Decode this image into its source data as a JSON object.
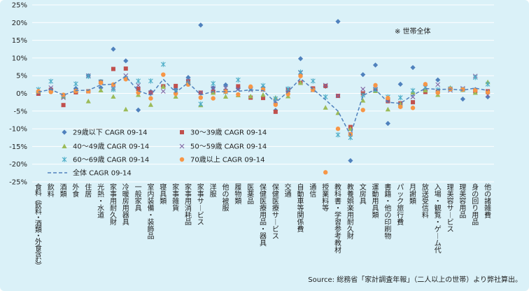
{
  "chart_data": {
    "type": "scatter",
    "ylim": [
      -25,
      25
    ],
    "y_ticks": [
      "25%",
      "20%",
      "15%",
      "10%",
      "5%",
      "0%",
      "-5%",
      "-10%",
      "-15%",
      "-20%",
      "-25%"
    ],
    "y_tick_values": [
      25,
      20,
      15,
      10,
      5,
      0,
      -5,
      -10,
      -15,
      -20,
      -25
    ],
    "grid": true,
    "legend_position": "bottom-left",
    "annotation": "※ 世帯全体",
    "source": "Source: 総務省「家計調査年報」（二人以上の世帯）より弊社算出。",
    "categories": [
      "食料（飲料・酒類・外食含む）",
      "飲料",
      "酒類",
      "外食",
      "住居",
      "光熱・水道",
      "家事用耐久財",
      "冷暖房用器具",
      "一般家具",
      "室内装備・装飾品",
      "寝具類",
      "家事雑貨",
      "家事用消耗品",
      "家事サービス",
      "洋服",
      "他の被服",
      "履物類",
      "医薬品",
      "保健医療用品・器具",
      "保健医療サービス",
      "交通",
      "自動車等関係費",
      "通信",
      "授業料等",
      "教科書・学習参考教材",
      "教養娯楽用耐久財",
      "文房具",
      "運動用具類",
      "書籍・他の印刷物",
      "パック旅行費",
      "月謝類",
      "放送受信料",
      "入場・観覧・ゲーム代",
      "理美容サービス",
      "理美容用品",
      "身の回り用品",
      "他の諸雑費"
    ],
    "series": [
      {
        "name": "29歳以下 CAGR 09-14",
        "marker": "diamond",
        "color": "#4f81bd",
        "values": [
          0.3,
          1.2,
          -0.6,
          1.4,
          5.0,
          1.6,
          12.5,
          9.2,
          -4.7,
          0.5,
          2.0,
          1.2,
          4.5,
          19.3,
          1.6,
          2.4,
          1.4,
          1.8,
          1.7,
          -4.8,
          0.7,
          9.8,
          1.2,
          2.0,
          20.3,
          -19.0,
          5.3,
          8.0,
          -8.5,
          2.6,
          7.3,
          0.8,
          3.8,
          1.3,
          -1.6,
          1.1,
          -1.0
        ]
      },
      {
        "name": "30～39歳 CAGR 09-14",
        "marker": "square",
        "color": "#c0504d",
        "values": [
          -0.1,
          1.0,
          -3.3,
          0.3,
          0.6,
          3.3,
          6.9,
          7.0,
          1.3,
          0.2,
          2.0,
          2.1,
          3.4,
          0.2,
          0.5,
          0.7,
          2.0,
          -1.2,
          -1.3,
          -5.2,
          0.9,
          3.0,
          1.4,
          2.1,
          -0.7,
          -9.5,
          0.0,
          1.0,
          -2.2,
          -2.8,
          -2.5,
          0.4,
          0.5,
          1.3,
          1.0,
          0.6,
          0.6
        ]
      },
      {
        "name": "40～49歳 CAGR 09-14",
        "marker": "triangle",
        "color": "#9bbb59",
        "values": [
          0.5,
          1.0,
          -0.9,
          0.8,
          -2.2,
          0.9,
          -0.9,
          -4.5,
          -0.4,
          -3.2,
          1.9,
          -0.9,
          3.2,
          -3.3,
          0.2,
          -0.9,
          -0.5,
          -0.8,
          -0.4,
          -1.2,
          -0.8,
          3.0,
          1.0,
          -4.0,
          -5.5,
          -10.0,
          -2.0,
          0.7,
          -4.5,
          -3.0,
          0.3,
          0.9,
          -0.4,
          1.6,
          1.0,
          0.2,
          3.2
        ]
      },
      {
        "name": "50～59歳 CAGR 09-14",
        "marker": "x",
        "color": "#8064a2",
        "values": [
          0.2,
          1.6,
          -1.2,
          0.7,
          5.0,
          3.2,
          1.5,
          5.0,
          2.3,
          0.2,
          0.6,
          0.7,
          3.5,
          0.2,
          1.4,
          1.5,
          1.2,
          1.0,
          1.1,
          -2.2,
          1.1,
          5.8,
          1.0,
          2.3,
          -0.7,
          -11.5,
          1.2,
          1.2,
          -1.9,
          -3.5,
          -1.0,
          1.7,
          2.5,
          0.9,
          1.4,
          4.9,
          -0.5
        ]
      },
      {
        "name": "60～69歳 CAGR 09-14",
        "marker": "asterisk",
        "color": "#4bacc6",
        "values": [
          1.1,
          3.4,
          -0.6,
          2.7,
          4.8,
          3.3,
          1.1,
          4.3,
          3.5,
          3.5,
          8.2,
          0.5,
          2.8,
          -3.0,
          2.8,
          0.4,
          3.8,
          1.3,
          2.2,
          -1.5,
          1.3,
          6.0,
          3.5,
          -1.0,
          -11.7,
          -12.5,
          -0.5,
          1.0,
          -1.0,
          -1.2,
          0.8,
          1.8,
          1.0,
          1.3,
          1.1,
          4.5,
          2.6
        ]
      },
      {
        "name": "70歳以上 CAGR 09-14",
        "marker": "circle",
        "color": "#f79646",
        "values": [
          0.6,
          0.4,
          -0.4,
          0.6,
          0.6,
          3.0,
          2.5,
          4.0,
          0.2,
          -1.4,
          5.3,
          -0.1,
          2.5,
          -1.2,
          -1.4,
          0.5,
          -0.3,
          1.9,
          1.1,
          -3.2,
          -0.2,
          4.9,
          1.0,
          -22.3,
          -10.0,
          -11.5,
          -4.7,
          2.3,
          -1.3,
          -3.8,
          -4.1,
          2.6,
          0.2,
          1.2,
          1.1,
          0.9,
          0.3
        ]
      },
      {
        "name": "全体 CAGR 09-14",
        "marker": "dashed-line",
        "color": "#4f81bd",
        "values": [
          0.4,
          1.1,
          -0.5,
          0.8,
          0.9,
          2.4,
          2.6,
          4.8,
          0.7,
          -0.5,
          4.0,
          0.3,
          3.0,
          -0.4,
          0.5,
          0.5,
          0.6,
          1.0,
          0.8,
          -2.6,
          0.5,
          4.2,
          1.2,
          -1.8,
          -5.0,
          -11.8,
          -0.6,
          1.1,
          -2.5,
          -2.8,
          -0.5,
          1.4,
          1.1,
          1.2,
          0.9,
          1.5,
          0.8
        ]
      }
    ]
  }
}
